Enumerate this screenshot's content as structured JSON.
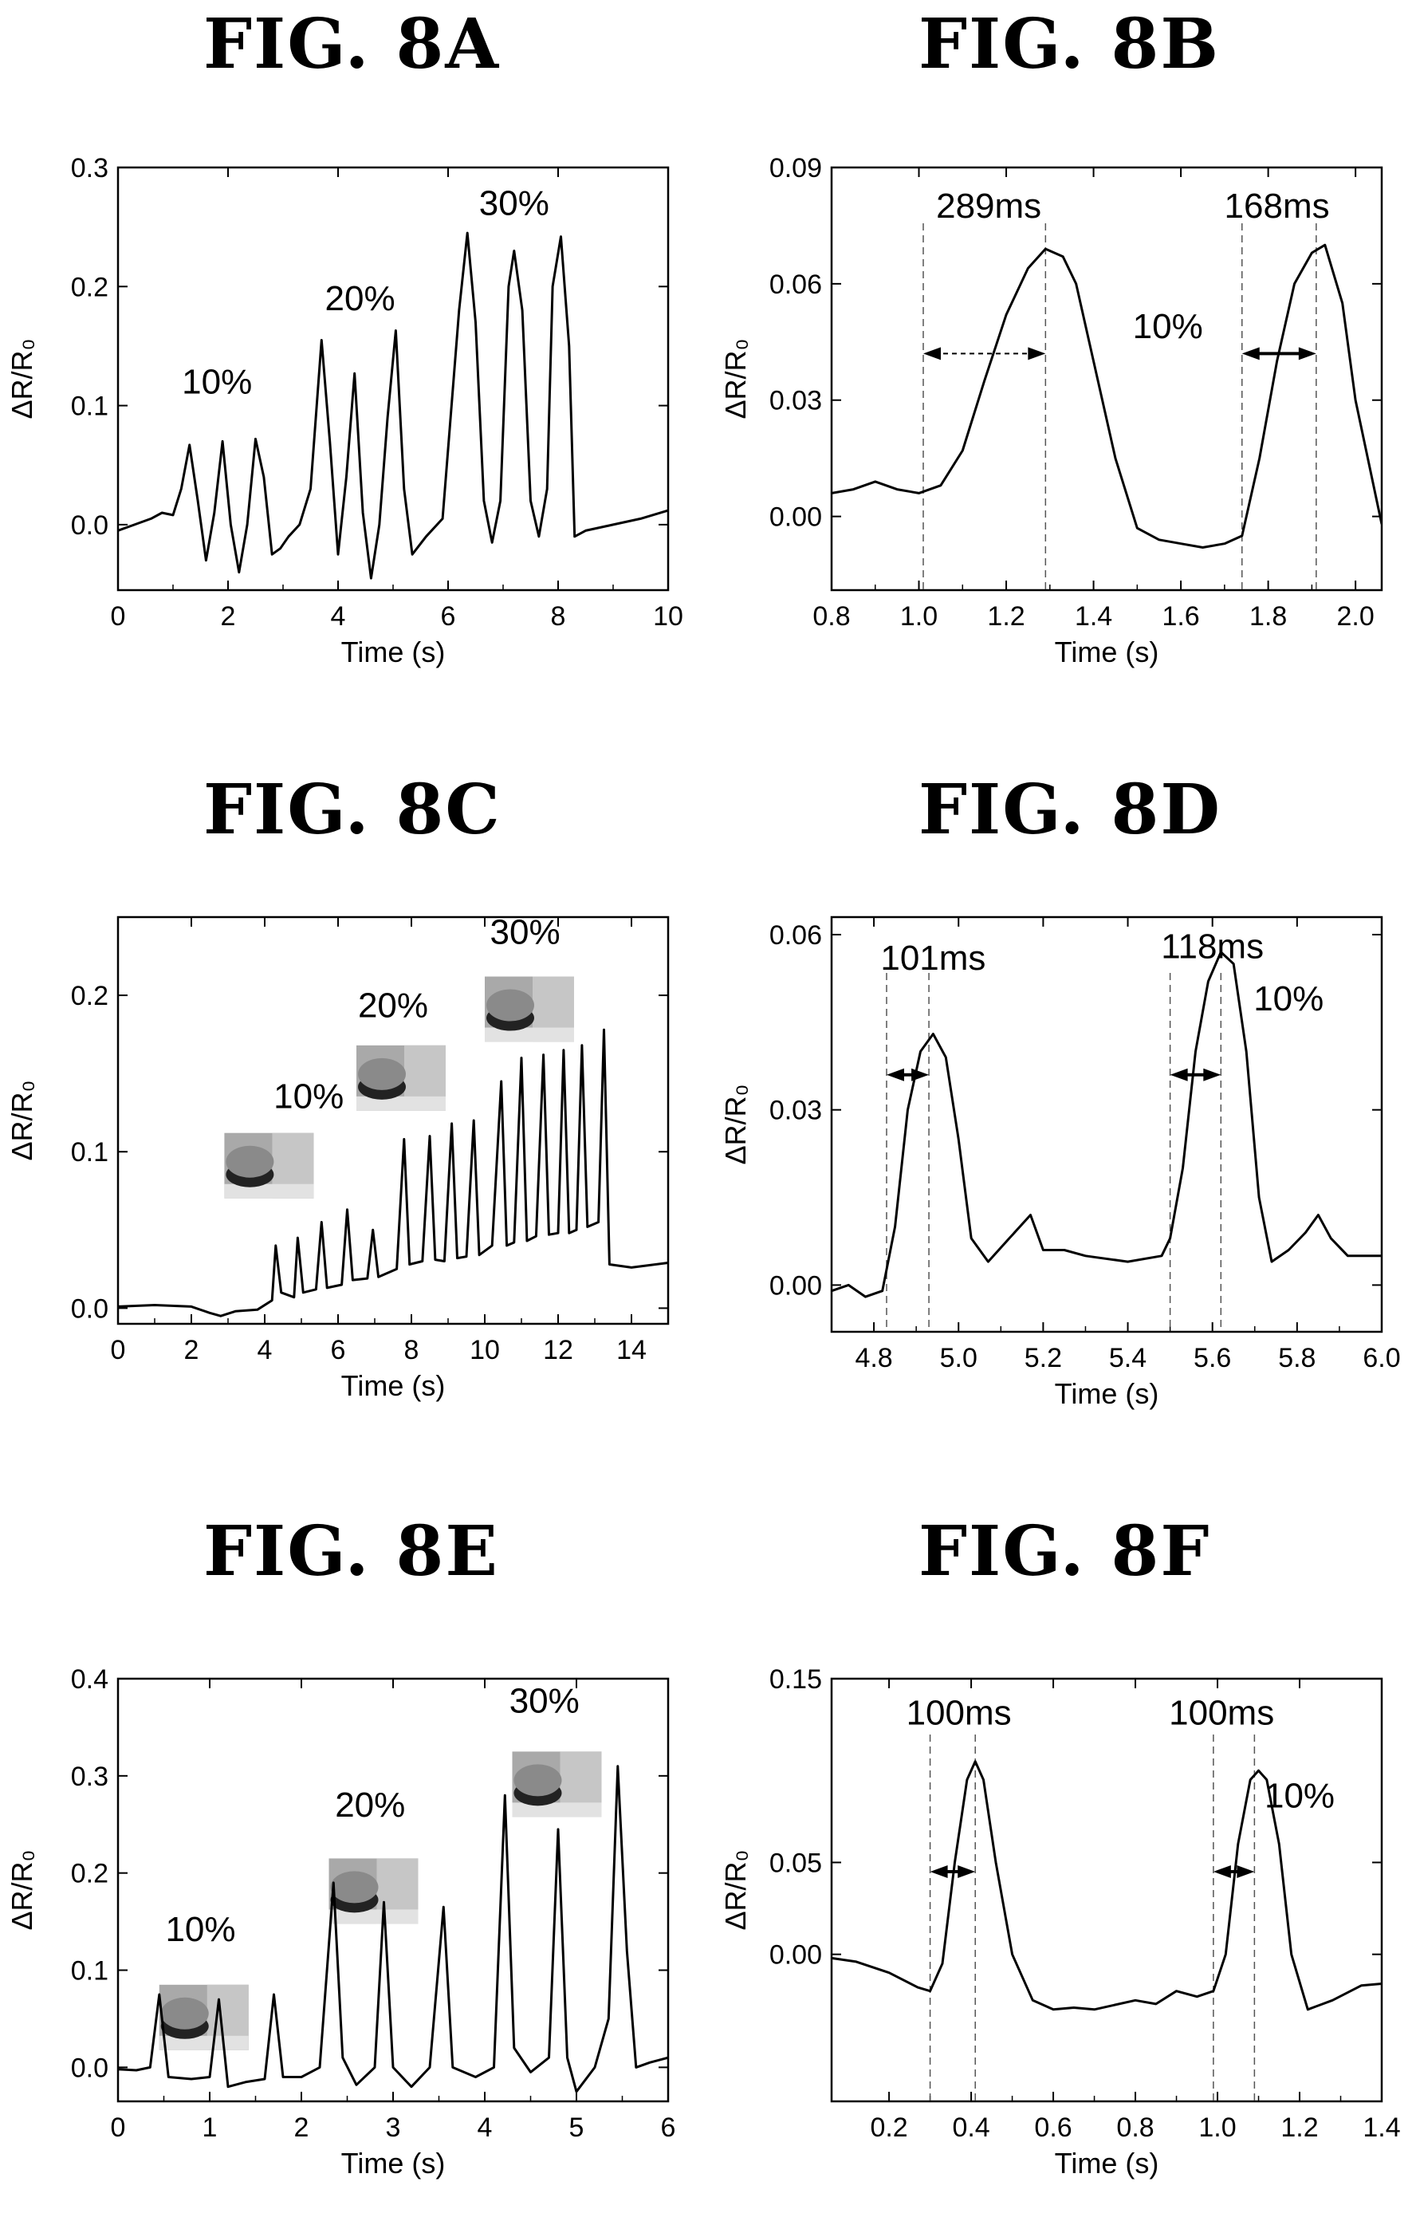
{
  "figures": [
    {
      "id": "8A",
      "title": "FIG. 8A",
      "chart_data": {
        "type": "line",
        "xlabel": "Time (s)",
        "ylabel": "ΔR/R₀",
        "xlim": [
          0,
          10
        ],
        "ylim": [
          -0.055,
          0.3
        ],
        "xticks": [
          0,
          2,
          4,
          6,
          8,
          10
        ],
        "xtick_labels": [
          "0",
          "2",
          "4",
          "6",
          "8",
          "10"
        ],
        "yticks": [
          0.0,
          0.1,
          0.2,
          0.3
        ],
        "ytick_labels": [
          "0.0",
          "0.1",
          "0.2",
          "0.3"
        ],
        "grid": false,
        "series": [
          {
            "x": [
              0,
              0.3,
              0.6,
              0.8,
              1.0,
              1.15,
              1.3,
              1.45,
              1.6,
              1.75,
              1.9,
              2.05,
              2.2,
              2.35,
              2.5,
              2.65,
              2.8,
              2.95,
              3.1,
              3.3,
              3.5,
              3.7,
              3.85,
              4.0,
              4.15,
              4.3,
              4.45,
              4.6,
              4.75,
              4.9,
              5.05,
              5.2,
              5.35,
              5.6,
              5.9,
              6.2,
              6.35,
              6.5,
              6.65,
              6.8,
              6.95,
              7.1,
              7.2,
              7.35,
              7.5,
              7.65,
              7.8,
              7.9,
              8.05,
              8.2,
              8.3,
              8.5,
              9.0,
              9.5,
              10.0
            ],
            "y": [
              -0.005,
              0.0,
              0.005,
              0.01,
              0.008,
              0.03,
              0.067,
              0.02,
              -0.03,
              0.01,
              0.07,
              0.0,
              -0.04,
              0.0,
              0.072,
              0.04,
              -0.025,
              -0.02,
              -0.01,
              0.0,
              0.03,
              0.155,
              0.07,
              -0.025,
              0.04,
              0.127,
              0.01,
              -0.045,
              0.0,
              0.09,
              0.163,
              0.03,
              -0.025,
              -0.01,
              0.005,
              0.18,
              0.245,
              0.17,
              0.02,
              -0.015,
              0.02,
              0.2,
              0.23,
              0.18,
              0.02,
              -0.01,
              0.03,
              0.2,
              0.242,
              0.15,
              -0.01,
              -0.005,
              0.0,
              0.005,
              0.012
            ]
          }
        ],
        "annotations": [
          {
            "text": "10%",
            "x": 1.8,
            "y": 0.11
          },
          {
            "text": "20%",
            "x": 4.4,
            "y": 0.18
          },
          {
            "text": "30%",
            "x": 7.2,
            "y": 0.26
          }
        ]
      }
    },
    {
      "id": "8B",
      "title": "FIG. 8B",
      "chart_data": {
        "type": "line",
        "xlabel": "Time (s)",
        "ylabel": "ΔR/R₀",
        "xlim": [
          0.8,
          2.06
        ],
        "ylim": [
          -0.019,
          0.09
        ],
        "xticks": [
          0.8,
          1.0,
          1.2,
          1.4,
          1.6,
          1.8,
          2.0
        ],
        "xtick_labels": [
          "0.8",
          "1.0",
          "1.2",
          "1.4",
          "1.6",
          "1.8",
          "2.0"
        ],
        "yticks": [
          0.0,
          0.03,
          0.06,
          0.09
        ],
        "ytick_labels": [
          "0.00",
          "0.03",
          "0.06",
          "0.09"
        ],
        "grid": false,
        "series": [
          {
            "x": [
              0.8,
              0.85,
              0.9,
              0.95,
              1.0,
              1.05,
              1.1,
              1.15,
              1.2,
              1.25,
              1.29,
              1.33,
              1.36,
              1.4,
              1.45,
              1.5,
              1.55,
              1.6,
              1.65,
              1.7,
              1.74,
              1.78,
              1.82,
              1.86,
              1.9,
              1.93,
              1.97,
              2.0,
              2.06
            ],
            "y": [
              0.006,
              0.007,
              0.009,
              0.007,
              0.006,
              0.008,
              0.017,
              0.035,
              0.052,
              0.064,
              0.069,
              0.067,
              0.06,
              0.04,
              0.015,
              -0.003,
              -0.006,
              -0.007,
              -0.008,
              -0.007,
              -0.005,
              0.015,
              0.04,
              0.06,
              0.068,
              0.07,
              0.055,
              0.03,
              -0.002
            ]
          }
        ],
        "markers": [
          {
            "type": "vline",
            "x": 1.01
          },
          {
            "type": "vline",
            "x": 1.29
          },
          {
            "type": "vline",
            "x": 1.74
          },
          {
            "type": "vline",
            "x": 1.91
          },
          {
            "type": "double-arrow",
            "x1": 1.01,
            "x2": 1.29,
            "y": 0.042,
            "style": "dashed"
          },
          {
            "type": "double-arrow",
            "x1": 1.74,
            "x2": 1.91,
            "y": 0.042,
            "style": "solid"
          }
        ],
        "annotations": [
          {
            "text": "289ms",
            "x": 1.16,
            "y": 0.077
          },
          {
            "text": "168ms",
            "x": 1.82,
            "y": 0.077
          },
          {
            "text": "10%",
            "x": 1.57,
            "y": 0.046
          }
        ]
      }
    },
    {
      "id": "8C",
      "title": "FIG. 8C",
      "chart_data": {
        "type": "line",
        "xlabel": "Time (s)",
        "ylabel": "ΔR/R₀",
        "xlim": [
          0,
          15
        ],
        "ylim": [
          -0.01,
          0.25
        ],
        "xticks": [
          0,
          2,
          4,
          6,
          8,
          10,
          12,
          14
        ],
        "xtick_labels": [
          "0",
          "2",
          "4",
          "6",
          "8",
          "10",
          "12",
          "14"
        ],
        "yticks": [
          0.0,
          0.1,
          0.2
        ],
        "ytick_labels": [
          "0.0",
          "0.1",
          "0.2"
        ],
        "grid": false,
        "series": [
          {
            "x": [
              0,
              1,
              2,
              2.5,
              2.8,
              3.2,
              3.8,
              4.2,
              4.3,
              4.45,
              4.8,
              4.9,
              5.05,
              5.4,
              5.55,
              5.7,
              6.1,
              6.25,
              6.4,
              6.8,
              6.95,
              7.1,
              7.6,
              7.8,
              7.95,
              8.3,
              8.5,
              8.65,
              8.9,
              9.1,
              9.25,
              9.5,
              9.7,
              9.85,
              10.2,
              10.45,
              10.6,
              10.8,
              11.0,
              11.15,
              11.4,
              11.6,
              11.75,
              12.0,
              12.15,
              12.3,
              12.5,
              12.65,
              12.8,
              13.1,
              13.25,
              13.4,
              14.0,
              15.0
            ],
            "y": [
              0.001,
              0.002,
              0.001,
              -0.003,
              -0.005,
              -0.002,
              -0.001,
              0.005,
              0.04,
              0.01,
              0.007,
              0.045,
              0.01,
              0.012,
              0.055,
              0.013,
              0.015,
              0.063,
              0.018,
              0.019,
              0.05,
              0.02,
              0.025,
              0.108,
              0.028,
              0.03,
              0.11,
              0.031,
              0.03,
              0.118,
              0.032,
              0.033,
              0.12,
              0.034,
              0.04,
              0.145,
              0.04,
              0.042,
              0.16,
              0.043,
              0.046,
              0.162,
              0.047,
              0.048,
              0.165,
              0.048,
              0.05,
              0.168,
              0.052,
              0.055,
              0.178,
              0.028,
              0.026,
              0.029
            ]
          }
        ],
        "annotations": [
          {
            "text": "10%",
            "x": 5.2,
            "y": 0.128
          },
          {
            "text": "20%",
            "x": 7.5,
            "y": 0.186
          },
          {
            "text": "30%",
            "x": 11.1,
            "y": 0.233
          }
        ],
        "images": [
          {
            "name": "sample-photo-10",
            "x": 2.9,
            "y": 0.112
          },
          {
            "name": "sample-photo-20",
            "x": 6.5,
            "y": 0.168
          },
          {
            "name": "sample-photo-30",
            "x": 10.0,
            "y": 0.212
          }
        ]
      }
    },
    {
      "id": "8D",
      "title": "FIG. 8D",
      "chart_data": {
        "type": "line",
        "xlabel": "Time (s)",
        "ylabel": "ΔR/R₀",
        "xlim": [
          4.7,
          6.0
        ],
        "ylim": [
          -0.008,
          0.063
        ],
        "xticks": [
          4.8,
          5.0,
          5.2,
          5.4,
          5.6,
          5.8,
          6.0
        ],
        "xtick_labels": [
          "4.8",
          "5.0",
          "5.2",
          "5.4",
          "5.6",
          "5.8",
          "6.0"
        ],
        "yticks": [
          0.0,
          0.03,
          0.06
        ],
        "ytick_labels": [
          "0.00",
          "0.03",
          "0.06"
        ],
        "grid": false,
        "series": [
          {
            "x": [
              4.7,
              4.74,
              4.78,
              4.82,
              4.85,
              4.88,
              4.91,
              4.94,
              4.97,
              5.0,
              5.03,
              5.07,
              5.12,
              5.17,
              5.2,
              5.25,
              5.3,
              5.4,
              5.48,
              5.5,
              5.53,
              5.56,
              5.59,
              5.62,
              5.65,
              5.68,
              5.71,
              5.74,
              5.78,
              5.82,
              5.85,
              5.88,
              5.92,
              6.0
            ],
            "y": [
              -0.001,
              0.0,
              -0.002,
              -0.001,
              0.01,
              0.03,
              0.04,
              0.043,
              0.039,
              0.025,
              0.008,
              0.004,
              0.008,
              0.012,
              0.006,
              0.006,
              0.005,
              0.004,
              0.005,
              0.008,
              0.02,
              0.04,
              0.052,
              0.057,
              0.055,
              0.04,
              0.015,
              0.004,
              0.006,
              0.009,
              0.012,
              0.008,
              0.005,
              0.005
            ]
          }
        ],
        "markers": [
          {
            "type": "vline",
            "x": 4.83
          },
          {
            "type": "vline",
            "x": 4.93
          },
          {
            "type": "vline",
            "x": 5.5
          },
          {
            "type": "vline",
            "x": 5.62
          },
          {
            "type": "double-arrow",
            "x1": 4.83,
            "x2": 4.93,
            "y": 0.036,
            "style": "solid"
          },
          {
            "type": "double-arrow",
            "x1": 5.5,
            "x2": 5.62,
            "y": 0.036,
            "style": "solid"
          }
        ],
        "annotations": [
          {
            "text": "101ms",
            "x": 4.94,
            "y": 0.054
          },
          {
            "text": "118ms",
            "x": 5.6,
            "y": 0.056
          },
          {
            "text": "10%",
            "x": 5.78,
            "y": 0.047
          }
        ]
      }
    },
    {
      "id": "8E",
      "title": "FIG. 8E",
      "chart_data": {
        "type": "line",
        "xlabel": "Time (s)",
        "ylabel": "ΔR/R₀",
        "xlim": [
          0,
          6
        ],
        "ylim": [
          -0.035,
          0.4
        ],
        "xticks": [
          0,
          1,
          2,
          3,
          4,
          5,
          6
        ],
        "xtick_labels": [
          "0",
          "1",
          "2",
          "3",
          "4",
          "5",
          "6"
        ],
        "yticks": [
          0.0,
          0.1,
          0.2,
          0.3,
          0.4
        ],
        "ytick_labels": [
          "0.0",
          "0.1",
          "0.2",
          "0.3",
          "0.4"
        ],
        "grid": false,
        "series": [
          {
            "x": [
              0,
              0.2,
              0.35,
              0.45,
              0.55,
              0.8,
              1.0,
              1.1,
              1.2,
              1.4,
              1.6,
              1.7,
              1.8,
              2.0,
              2.2,
              2.35,
              2.45,
              2.6,
              2.8,
              2.9,
              3.0,
              3.2,
              3.4,
              3.55,
              3.65,
              3.9,
              4.1,
              4.22,
              4.32,
              4.5,
              4.7,
              4.8,
              4.9,
              5.0,
              5.2,
              5.35,
              5.45,
              5.55,
              5.65,
              5.8,
              6.0
            ],
            "y": [
              -0.002,
              -0.003,
              0.0,
              0.075,
              -0.01,
              -0.012,
              -0.01,
              0.07,
              -0.02,
              -0.015,
              -0.012,
              0.075,
              -0.01,
              -0.01,
              0.0,
              0.19,
              0.01,
              -0.018,
              0.0,
              0.17,
              0.0,
              -0.02,
              0.0,
              0.165,
              0.0,
              -0.01,
              0.0,
              0.28,
              0.02,
              -0.005,
              0.01,
              0.245,
              0.01,
              -0.025,
              0.0,
              0.05,
              0.31,
              0.12,
              0.0,
              0.005,
              0.01
            ]
          }
        ],
        "annotations": [
          {
            "text": "10%",
            "x": 0.9,
            "y": 0.13
          },
          {
            "text": "20%",
            "x": 2.75,
            "y": 0.258
          },
          {
            "text": "30%",
            "x": 4.65,
            "y": 0.365
          }
        ],
        "images": [
          {
            "name": "sample-photo-10",
            "x": 0.45,
            "y": 0.085
          },
          {
            "name": "sample-photo-20",
            "x": 2.3,
            "y": 0.215
          },
          {
            "name": "sample-photo-30",
            "x": 4.3,
            "y": 0.325
          }
        ]
      }
    },
    {
      "id": "8F",
      "title": "FIG. 8F",
      "chart_data": {
        "type": "line",
        "xlabel": "Time (s)",
        "ylabel": "ΔR/R₀",
        "xlim": [
          0.06,
          1.4
        ],
        "ylim": [
          -0.08,
          0.15
        ],
        "xticks": [
          0.2,
          0.4,
          0.6,
          0.8,
          1.0,
          1.2,
          1.4
        ],
        "xtick_labels": [
          "0.2",
          "0.4",
          "0.6",
          "0.8",
          "1.0",
          "1.2",
          "1.4"
        ],
        "yticks": [
          0.0,
          0.05,
          0.15
        ],
        "ytick_labels": [
          "0.00",
          "0.05",
          "0.15"
        ],
        "grid": false,
        "series": [
          {
            "x": [
              0.06,
              0.12,
              0.2,
              0.27,
              0.3,
              0.33,
              0.36,
              0.39,
              0.41,
              0.43,
              0.46,
              0.5,
              0.55,
              0.6,
              0.65,
              0.7,
              0.8,
              0.85,
              0.9,
              0.95,
              0.99,
              1.02,
              1.05,
              1.08,
              1.1,
              1.12,
              1.15,
              1.18,
              1.22,
              1.28,
              1.35,
              1.4
            ],
            "y": [
              -0.002,
              -0.004,
              -0.01,
              -0.018,
              -0.02,
              -0.005,
              0.05,
              0.095,
              0.105,
              0.095,
              0.05,
              0.0,
              -0.025,
              -0.03,
              -0.029,
              -0.03,
              -0.025,
              -0.027,
              -0.02,
              -0.023,
              -0.02,
              0.0,
              0.06,
              0.095,
              0.1,
              0.095,
              0.06,
              0.0,
              -0.03,
              -0.025,
              -0.017,
              -0.016
            ]
          }
        ],
        "markers": [
          {
            "type": "vline",
            "x": 0.3
          },
          {
            "type": "vline",
            "x": 0.41
          },
          {
            "type": "vline",
            "x": 0.99
          },
          {
            "type": "vline",
            "x": 1.09
          },
          {
            "type": "double-arrow",
            "x1": 0.3,
            "x2": 0.41,
            "y": 0.045,
            "style": "solid"
          },
          {
            "type": "double-arrow",
            "x1": 0.99,
            "x2": 1.09,
            "y": 0.045,
            "style": "solid"
          }
        ],
        "annotations": [
          {
            "text": "100ms",
            "x": 0.37,
            "y": 0.125
          },
          {
            "text": "100ms",
            "x": 1.01,
            "y": 0.125
          },
          {
            "text": "10%",
            "x": 1.2,
            "y": 0.08
          }
        ]
      }
    }
  ]
}
